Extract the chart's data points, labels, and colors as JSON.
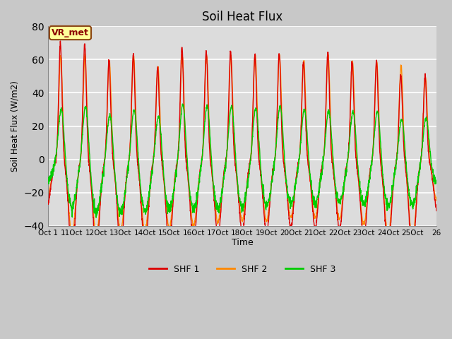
{
  "title": "Soil Heat Flux",
  "ylabel": "Soil Heat Flux (W/m2)",
  "xlabel": "Time",
  "ylim": [
    -40,
    80
  ],
  "annotation_text": "VR_met",
  "legend_labels": [
    "SHF 1",
    "SHF 2",
    "SHF 3"
  ],
  "colors": {
    "SHF1": "#dd0000",
    "SHF2": "#ff8800",
    "SHF3": "#00cc00"
  },
  "plot_bg": "#dcdcdc",
  "fig_bg": "#c8c8c8",
  "num_days": 16,
  "points_per_day": 144,
  "shf1_peaks": [
    70,
    70,
    60,
    63,
    55,
    67,
    65,
    65,
    63,
    64,
    59,
    65,
    59,
    59,
    51,
    50
  ],
  "shf2_peaks": [
    63,
    63,
    60,
    63,
    56,
    63,
    63,
    63,
    63,
    63,
    60,
    63,
    59,
    59,
    57,
    50
  ],
  "shf3_peaks": [
    32,
    34,
    29,
    32,
    28,
    35,
    34,
    34,
    33,
    34,
    32,
    31,
    31,
    31,
    26,
    26
  ],
  "shf1_nights": [
    -26,
    -30,
    -26,
    -28,
    -26,
    -25,
    -25,
    -21,
    -23,
    -21,
    -20,
    -21,
    -21,
    -26,
    -29,
    -29
  ],
  "shf2_nights": [
    -21,
    -24,
    -21,
    -22,
    -21,
    -20,
    -20,
    -18,
    -19,
    -18,
    -17,
    -18,
    -18,
    -21,
    -24,
    -24
  ],
  "shf3_nights": [
    -13,
    -16,
    -16,
    -16,
    -15,
    -15,
    -15,
    -15,
    -14,
    -14,
    -13,
    -13,
    -13,
    -14,
    -14,
    -14
  ]
}
